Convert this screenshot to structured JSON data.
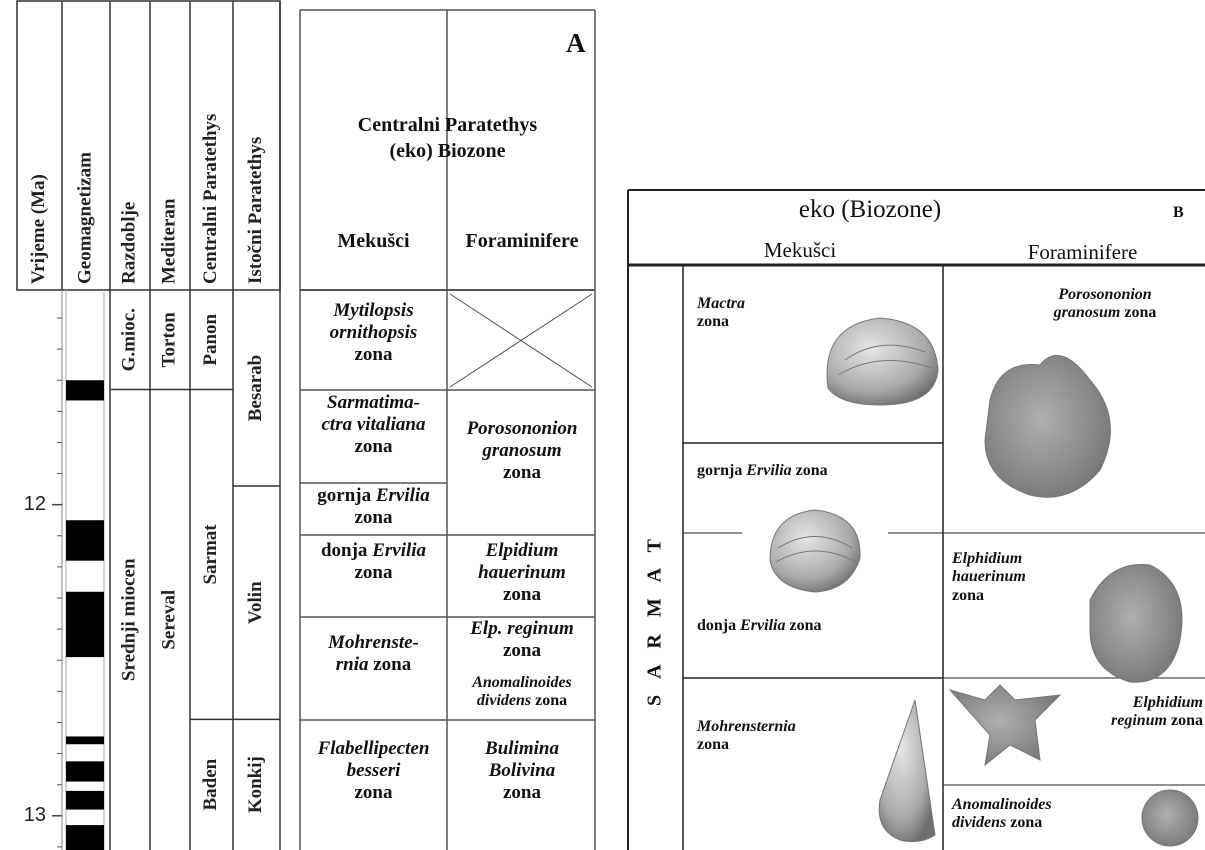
{
  "left_panel": {
    "headers": [
      "Vrijeme (Ma)",
      "Geomagnetizam",
      "Razdoblje",
      "Mediteran",
      "Centralni Paratethys",
      "Istočni Paratethys"
    ],
    "time_range": [
      11.31,
      13.11
    ],
    "time_ticks": [
      12,
      13
    ],
    "time_minor_ticks": [
      11.4,
      11.5,
      11.6,
      11.7,
      11.8,
      11.9,
      12.1,
      12.2,
      12.3,
      12.4,
      12.5,
      12.6,
      12.7,
      12.8,
      12.9,
      13.1
    ],
    "normal_polarity": [
      [
        11.6,
        11.665
      ],
      [
        12.05,
        12.18
      ],
      [
        12.28,
        12.49
      ],
      [
        12.745,
        12.77
      ],
      [
        12.825,
        12.89
      ],
      [
        12.92,
        12.98
      ],
      [
        13.03,
        13.11
      ]
    ],
    "units": [
      {
        "column": 2,
        "label": "G.mioc.",
        "from": 11.31,
        "to": 11.63
      },
      {
        "column": 2,
        "label": "Srednji miocen",
        "from": 11.63,
        "to": 13.11
      },
      {
        "column": 3,
        "label": "Torton",
        "from": 11.31,
        "to": 11.63
      },
      {
        "column": 3,
        "label": "Sereval",
        "from": 11.63,
        "to": 13.11
      },
      {
        "column": 4,
        "label": "Panon",
        "from": 11.31,
        "to": 11.63
      },
      {
        "column": 4,
        "label": "Sarmat",
        "from": 11.63,
        "to": 12.69
      },
      {
        "column": 4,
        "label": "Baden",
        "from": 12.69,
        "to": 13.11
      },
      {
        "column": 5,
        "label": "Besarab",
        "from": 11.31,
        "to": 11.94
      },
      {
        "column": 5,
        "label": "Volin",
        "from": 11.94,
        "to": 12.69
      },
      {
        "column": 5,
        "label": "Konkij",
        "from": 12.69,
        "to": 13.11
      }
    ]
  },
  "panel_a": {
    "label": "A",
    "title": [
      "Centralni Paratethys",
      "(eko) Biozone"
    ],
    "columns": [
      "Mekušci",
      "Foraminifere"
    ],
    "mollusc_zones": [
      [
        [
          {
            "i": "Mytilopsis"
          }
        ],
        [
          {
            "i": "ornithopsis"
          }
        ],
        [
          "zona"
        ]
      ],
      [
        [
          {
            "i": "Sarmatima-"
          }
        ],
        [
          {
            "i": "ctra vitaliana"
          }
        ],
        [
          "zona"
        ]
      ],
      [
        [
          "gornja",
          {
            "i": "Ervilia"
          }
        ],
        [
          "zona"
        ]
      ],
      [
        [
          "donja",
          {
            "i": "Ervilia"
          }
        ],
        [
          "zona"
        ]
      ],
      [
        [
          {
            "i": "Mohrenste-"
          }
        ],
        [
          {
            "i": "rnia"
          },
          "zona"
        ]
      ],
      [
        [
          {
            "i": "Flabellipecten"
          }
        ],
        [
          {
            "i": "besseri"
          }
        ],
        [
          "zona"
        ]
      ]
    ],
    "foram_zones": [
      [
        [
          {
            "i": "Porosononion"
          }
        ],
        [
          {
            "i": "granosum"
          }
        ],
        [
          "zona"
        ]
      ],
      [
        [
          {
            "i": "Elpidium"
          }
        ],
        [
          {
            "i": "hauerinum"
          }
        ],
        [
          "zona"
        ]
      ],
      [
        [
          {
            "i": "Elp. reginum"
          }
        ],
        [
          "zona"
        ]
      ],
      [
        [
          {
            "i": "Anomalinoides"
          }
        ],
        [
          {
            "i": "dividens"
          },
          "zona"
        ]
      ],
      [
        [
          {
            "i": "Bulimina"
          }
        ],
        [
          {
            "i": "Bolivina"
          }
        ],
        [
          "zona"
        ]
      ]
    ]
  },
  "panel_b": {
    "title": "eko (Biozone)",
    "label": "B",
    "columns": [
      "Mekušci",
      "Foraminifere"
    ],
    "stage": "S A R M A T",
    "mollusc_zones": [
      [
        [
          {
            "i": "Mactra"
          }
        ],
        [
          "zona"
        ]
      ],
      [
        [
          "gornja",
          {
            "i": "Ervilia"
          },
          "zona"
        ]
      ],
      [
        [
          "donja",
          {
            "i": "Ervilia"
          },
          "zona"
        ]
      ],
      [
        [
          {
            "i": "Mohrensternia"
          }
        ],
        [
          "zona"
        ]
      ]
    ],
    "foram_zones": [
      [
        [
          {
            "i": "Porosononion"
          }
        ],
        [
          {
            "i": "granosum"
          },
          "zona"
        ]
      ],
      [
        [
          {
            "i": "Elphidium"
          }
        ],
        [
          {
            "i": "hauerinum"
          }
        ],
        [
          "zona"
        ]
      ],
      [
        [
          {
            "i": "Elphidium"
          }
        ],
        [
          {
            "i": "reginum"
          },
          "zona"
        ]
      ],
      [
        [
          {
            "i": "Anomalinoides"
          }
        ],
        [
          {
            "i": "dividens"
          },
          "zona"
        ]
      ]
    ]
  }
}
